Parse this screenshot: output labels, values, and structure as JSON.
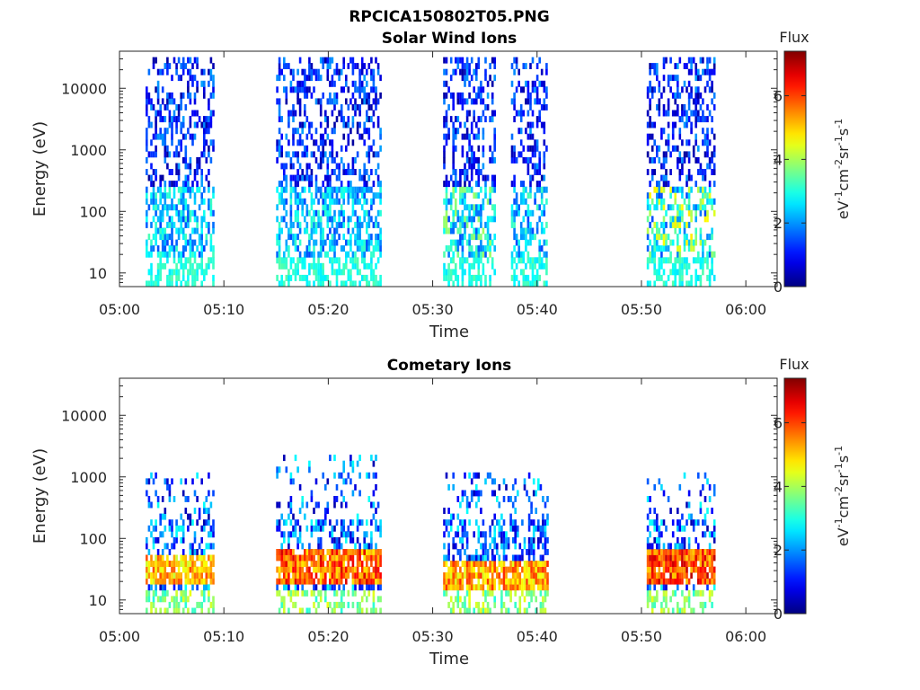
{
  "figure_title": "RPCICA150802T05.PNG",
  "chart_data": [
    {
      "type": "heatmap",
      "title": "Solar Wind Ions",
      "xlabel": "Time",
      "ylabel": "Energy (eV)",
      "y_scale": "log",
      "ylim": [
        6,
        40000
      ],
      "y_ticks": [
        10,
        100,
        1000,
        10000
      ],
      "y_tick_labels": [
        "10",
        "100",
        "1000",
        "10000"
      ],
      "x_range": [
        "05:00",
        "06:03"
      ],
      "x_tick_labels": [
        "05:00",
        "05:10",
        "05:20",
        "05:30",
        "05:40",
        "05:50",
        "06:00"
      ],
      "colorbar": {
        "title": "Flux",
        "unit": "eV-1cm-2sr-1s-1",
        "range": [
          0,
          7.4
        ],
        "ticks": [
          0,
          2,
          4,
          6
        ],
        "colormap": "jet"
      },
      "bursts": [
        {
          "start": "05:02.5",
          "end": "05:09",
          "emin": 6,
          "emax": 30000,
          "peak_flux": 3.3
        },
        {
          "start": "05:15",
          "end": "05:25",
          "emin": 6,
          "emax": 30000,
          "peak_flux": 3.2
        },
        {
          "start": "05:31",
          "end": "05:36",
          "emin": 6,
          "emax": 30000,
          "peak_flux": 4.0
        },
        {
          "start": "05:37.5",
          "end": "05:41",
          "emin": 6,
          "emax": 30000,
          "peak_flux": 3.3
        },
        {
          "start": "05:50.5",
          "end": "05:57",
          "emin": 6,
          "emax": 30000,
          "peak_flux": 4.8
        }
      ]
    },
    {
      "type": "heatmap",
      "title": "Cometary Ions",
      "xlabel": "Time",
      "ylabel": "Energy (eV)",
      "y_scale": "log",
      "ylim": [
        6,
        40000
      ],
      "y_ticks": [
        10,
        100,
        1000,
        10000
      ],
      "y_tick_labels": [
        "10",
        "100",
        "1000",
        "10000"
      ],
      "x_range": [
        "05:00",
        "06:03"
      ],
      "x_tick_labels": [
        "05:00",
        "05:10",
        "05:20",
        "05:30",
        "05:40",
        "05:50",
        "06:00"
      ],
      "colorbar": {
        "title": "Flux",
        "unit": "eV-1cm-2sr-1s-1",
        "range": [
          0,
          7.4
        ],
        "ticks": [
          0,
          2,
          4,
          6
        ],
        "colormap": "jet"
      },
      "bursts": [
        {
          "start": "05:02.5",
          "end": "05:09",
          "emin": 6,
          "emax": 1200,
          "peak_energy": 30,
          "peak_flux": 6.0
        },
        {
          "start": "05:15",
          "end": "05:25",
          "emin": 6,
          "emax": 2400,
          "peak_energy": 35,
          "peak_flux": 6.8
        },
        {
          "start": "05:31",
          "end": "05:41",
          "emin": 6,
          "emax": 1300,
          "peak_energy": 25,
          "peak_flux": 6.2
        },
        {
          "start": "05:50.5",
          "end": "05:57",
          "emin": 6,
          "emax": 1200,
          "peak_energy": 35,
          "peak_flux": 7.0
        }
      ]
    }
  ]
}
